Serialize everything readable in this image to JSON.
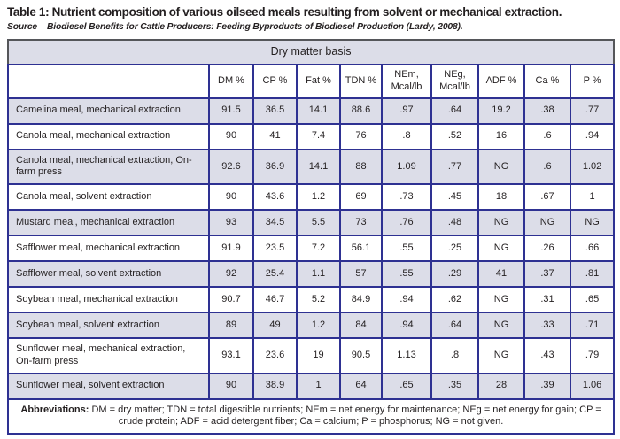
{
  "title": "Table 1: Nutrient composition of various oilseed meals resulting from solvent or mechanical extraction.",
  "source": "Source – Biodiesel Benefits for Cattle Producers: Feeding Byproducts of Biodiesel Production (Lardy, 2008).",
  "colors": {
    "grid_border": "#2e3192",
    "outer_header_border": "#55565a",
    "shaded_row": "#dcdde8",
    "text": "#231f20"
  },
  "table": {
    "group_header": "Dry matter basis",
    "columns": [
      "",
      "DM %",
      "CP %",
      "Fat %",
      "TDN %",
      "NEm, Mcal/lb",
      "NEg, Mcal/lb",
      "ADF %",
      "Ca %",
      "P %"
    ],
    "rows": [
      {
        "label": "Camelina meal, mechanical extraction",
        "values": [
          "91.5",
          "36.5",
          "14.1",
          "88.6",
          ".97",
          ".64",
          "19.2",
          ".38",
          ".77"
        ]
      },
      {
        "label": "Canola meal, mechanical extraction",
        "values": [
          "90",
          "41",
          "7.4",
          "76",
          ".8",
          ".52",
          "16",
          ".6",
          ".94"
        ]
      },
      {
        "label": "Canola meal, mechanical extraction, On-farm press",
        "values": [
          "92.6",
          "36.9",
          "14.1",
          "88",
          "1.09",
          ".77",
          "NG",
          ".6",
          "1.02"
        ]
      },
      {
        "label": "Canola meal, solvent extraction",
        "values": [
          "90",
          "43.6",
          "1.2",
          "69",
          ".73",
          ".45",
          "18",
          ".67",
          "1"
        ]
      },
      {
        "label": "Mustard meal, mechanical extraction",
        "values": [
          "93",
          "34.5",
          "5.5",
          "73",
          ".76",
          ".48",
          "NG",
          "NG",
          "NG"
        ]
      },
      {
        "label": "Safflower meal, mechanical extraction",
        "values": [
          "91.9",
          "23.5",
          "7.2",
          "56.1",
          ".55",
          ".25",
          "NG",
          ".26",
          ".66"
        ]
      },
      {
        "label": "Safflower meal, solvent extraction",
        "values": [
          "92",
          "25.4",
          "1.1",
          "57",
          ".55",
          ".29",
          "41",
          ".37",
          ".81"
        ]
      },
      {
        "label": "Soybean meal, mechanical extraction",
        "values": [
          "90.7",
          "46.7",
          "5.2",
          "84.9",
          ".94",
          ".62",
          "NG",
          ".31",
          ".65"
        ]
      },
      {
        "label": "Soybean meal, solvent extraction",
        "values": [
          "89",
          "49",
          "1.2",
          "84",
          ".94",
          ".64",
          "NG",
          ".33",
          ".71"
        ]
      },
      {
        "label": "Sunflower meal, mechanical extraction, On-farm press",
        "values": [
          "93.1",
          "23.6",
          "19",
          "90.5",
          "1.13",
          ".8",
          "NG",
          ".43",
          ".79"
        ]
      },
      {
        "label": "Sunflower meal, solvent extraction",
        "values": [
          "90",
          "38.9",
          "1",
          "64",
          ".65",
          ".35",
          "28",
          ".39",
          "1.06"
        ]
      }
    ],
    "footnote_label": "Abbreviations:",
    "footnote_text": "DM = dry matter; TDN = total digestible nutrients; NEm = net energy for maintenance; NEg = net energy for gain; CP = crude protein; ADF = acid detergent fiber; Ca = calcium; P = phosphorus; NG = not given."
  }
}
